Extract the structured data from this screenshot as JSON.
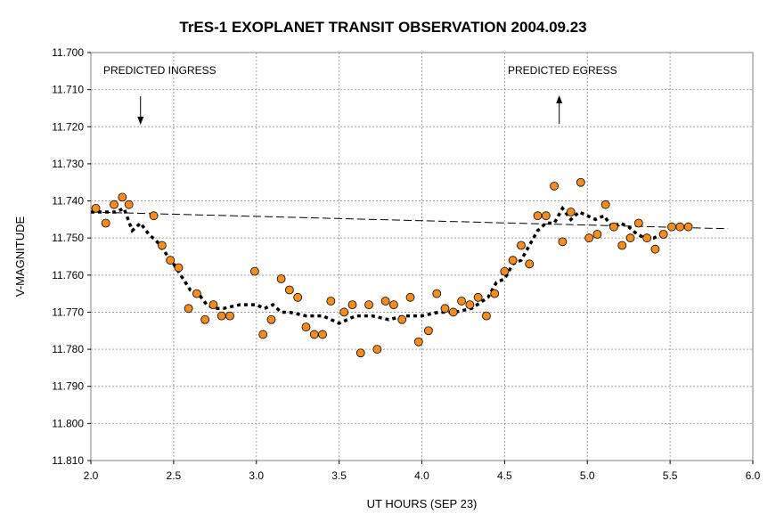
{
  "chart_data": {
    "type": "scatter",
    "title": "TrES-1 EXOPLANET TRANSIT OBSERVATION 2004.09.23",
    "xlabel": "UT HOURS (SEP 23)",
    "ylabel": "V-MAGNITUDE",
    "xlim": [
      2.0,
      6.0
    ],
    "ylim": [
      11.7,
      11.81
    ],
    "y_inverted": true,
    "xticks": [
      "2.0",
      "2.5",
      "3.0",
      "3.5",
      "4.0",
      "4.5",
      "5.0",
      "5.5",
      "6.0"
    ],
    "yticks": [
      "11.700",
      "11.710",
      "11.720",
      "11.730",
      "11.740",
      "11.750",
      "11.760",
      "11.770",
      "11.780",
      "11.790",
      "11.800",
      "11.810"
    ],
    "grid": true,
    "annotations": [
      {
        "text": "PREDICTED INGRESS",
        "x": 2.3,
        "arrow": "down"
      },
      {
        "text": "PREDICTED EGRESS",
        "x": 4.83,
        "arrow": "up"
      }
    ],
    "point_color": "#ff8c1a",
    "series": [
      {
        "x": [
          2.03,
          2.09,
          2.14,
          2.19,
          2.23,
          2.38,
          2.43,
          2.48,
          2.53,
          2.59,
          2.64,
          2.69,
          2.74,
          2.79,
          2.84,
          2.99,
          3.04,
          3.09,
          3.15,
          3.2,
          3.25,
          3.3,
          3.35,
          3.4,
          3.45,
          3.53,
          3.58,
          3.63,
          3.68,
          3.73,
          3.78,
          3.83,
          3.88,
          3.93,
          3.98,
          4.04,
          4.09,
          4.14,
          4.19,
          4.24,
          4.29,
          4.34,
          4.39,
          4.44,
          4.5,
          4.55,
          4.6,
          4.65,
          4.7,
          4.75,
          4.8,
          4.85,
          4.9,
          4.96,
          5.01,
          5.06,
          5.11,
          5.16,
          5.21,
          5.26,
          5.31,
          5.36,
          5.41,
          5.46,
          5.51,
          5.56,
          5.61
        ],
        "values": [
          11.742,
          11.746,
          11.741,
          11.739,
          11.741,
          11.744,
          11.752,
          11.756,
          11.758,
          11.769,
          11.765,
          11.772,
          11.768,
          11.771,
          11.771,
          11.759,
          11.776,
          11.772,
          11.761,
          11.764,
          11.766,
          11.774,
          11.776,
          11.776,
          11.767,
          11.77,
          11.768,
          11.781,
          11.768,
          11.78,
          11.767,
          11.768,
          11.772,
          11.766,
          11.778,
          11.775,
          11.765,
          11.769,
          11.77,
          11.767,
          11.768,
          11.766,
          11.771,
          11.765,
          11.759,
          11.756,
          11.752,
          11.757,
          11.744,
          11.744,
          11.736,
          11.751,
          11.743,
          11.735,
          11.75,
          11.749,
          11.741,
          11.747,
          11.752,
          11.75,
          11.746,
          11.75,
          11.753,
          11.749,
          11.747,
          11.747,
          11.747
        ]
      },
      {
        "type": "line",
        "style": "dotted",
        "x": [
          2.0,
          2.1,
          2.15,
          2.2,
          2.25,
          2.3,
          2.35,
          2.4,
          2.5,
          2.6,
          2.65,
          2.7,
          2.75,
          2.8,
          2.9,
          3.0,
          3.05,
          3.1,
          3.15,
          3.2,
          3.3,
          3.4,
          3.5,
          3.55,
          3.6,
          3.7,
          3.8,
          3.9,
          4.0,
          4.1,
          4.2,
          4.3,
          4.4,
          4.45,
          4.5,
          4.55,
          4.6,
          4.65,
          4.7,
          4.75,
          4.8,
          4.85,
          4.9,
          4.95,
          5.0,
          5.05,
          5.1,
          5.15,
          5.2,
          5.25,
          5.3,
          5.35,
          5.4,
          5.45
        ],
        "values": [
          11.743,
          11.743,
          11.743,
          11.742,
          11.748,
          11.746,
          11.749,
          11.751,
          11.757,
          11.764,
          11.765,
          11.768,
          11.769,
          11.769,
          11.768,
          11.768,
          11.769,
          11.768,
          11.77,
          11.77,
          11.771,
          11.771,
          11.773,
          11.772,
          11.771,
          11.771,
          11.772,
          11.771,
          11.771,
          11.77,
          11.77,
          11.769,
          11.766,
          11.762,
          11.761,
          11.757,
          11.756,
          11.752,
          11.748,
          11.746,
          11.746,
          11.742,
          11.745,
          11.743,
          11.744,
          11.745,
          11.744,
          11.747,
          11.746,
          11.747,
          11.749,
          11.75,
          11.75,
          11.749
        ]
      },
      {
        "type": "line",
        "style": "dashed",
        "x": [
          2.0,
          5.85
        ],
        "values": [
          11.743,
          11.7475
        ]
      }
    ]
  }
}
